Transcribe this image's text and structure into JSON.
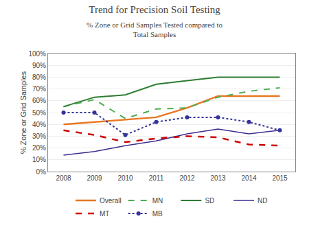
{
  "chart_data": {
    "type": "line",
    "title": "Trend for Precision Soil Testing",
    "subtitle": "% Zone or Grid Samples Tested compared to\nTotal Samples",
    "ylabel": "% Zone or Grid Samples",
    "x": [
      2008,
      2009,
      2010,
      2011,
      2012,
      2013,
      2014,
      2015
    ],
    "series": [
      {
        "name": "Overall",
        "color": "#E87722",
        "line_style": "solid",
        "values": [
          0.4,
          0.42,
          0.44,
          0.46,
          0.54,
          0.64,
          0.64,
          0.64
        ]
      },
      {
        "name": "MN",
        "color": "#4CAF50",
        "line_style": "dashed",
        "values": [
          0.55,
          0.61,
          0.45,
          0.53,
          0.54,
          0.63,
          0.68,
          0.71
        ]
      },
      {
        "name": "SD",
        "color": "#2E7D32",
        "line_style": "solid",
        "values": [
          0.55,
          0.63,
          0.65,
          0.74,
          0.77,
          0.8,
          0.8,
          0.8
        ]
      },
      {
        "name": "ND",
        "color": "#3F2D8F",
        "line_style": "solid",
        "values": [
          0.14,
          0.17,
          0.22,
          0.26,
          0.32,
          0.36,
          0.32,
          0.35
        ]
      },
      {
        "name": "MT",
        "color": "#CC0000",
        "line_style": "dashed",
        "values": [
          0.35,
          0.31,
          0.25,
          0.28,
          0.3,
          0.29,
          0.23,
          0.22
        ]
      },
      {
        "name": "MB",
        "color": "#333399",
        "line_style": "dotted",
        "marker": "circle",
        "values": [
          0.5,
          0.5,
          0.31,
          0.42,
          0.46,
          0.46,
          0.42,
          0.35
        ]
      }
    ],
    "xlim": [
      2007.5,
      2015.5
    ],
    "xticks": [
      2008,
      2009,
      2010,
      2011,
      2012,
      2013,
      2014,
      2015
    ],
    "ylim": [
      0.0,
      1.0
    ],
    "yticks": [
      {
        "value": 0.0,
        "label": "0%"
      },
      {
        "value": 0.1,
        "label": "10%"
      },
      {
        "value": 0.2,
        "label": "20%"
      },
      {
        "value": 0.3,
        "label": "30%"
      },
      {
        "value": 0.4,
        "label": "40%"
      },
      {
        "value": 0.5,
        "label": "50%"
      },
      {
        "value": 0.6,
        "label": "60%"
      },
      {
        "value": 0.7,
        "label": "70%"
      },
      {
        "value": 0.8,
        "label": "80%"
      },
      {
        "value": 0.9,
        "label": "90%"
      },
      {
        "value": 1.0,
        "label": "100%"
      }
    ],
    "grid": true,
    "legend": "bottom"
  }
}
